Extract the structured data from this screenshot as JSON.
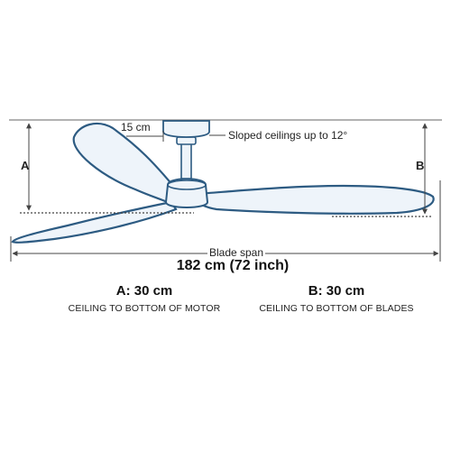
{
  "labels": {
    "offset": "15 cm",
    "sloped": "Sloped ceilings up to 12°",
    "a_letter": "A",
    "b_letter": "B",
    "blade_span_label": "Blade span",
    "blade_span_value": "182 cm (72 inch)"
  },
  "measurements": {
    "a": {
      "value": "A: 30 cm",
      "desc": "CEILING TO BOTTOM OF MOTOR"
    },
    "b": {
      "value": "B: 30 cm",
      "desc": "CEILING TO BOTTOM OF BLADES"
    }
  },
  "colors": {
    "outline": "#2d5b82",
    "fill": "#eef4fa",
    "lines": "#444444"
  }
}
